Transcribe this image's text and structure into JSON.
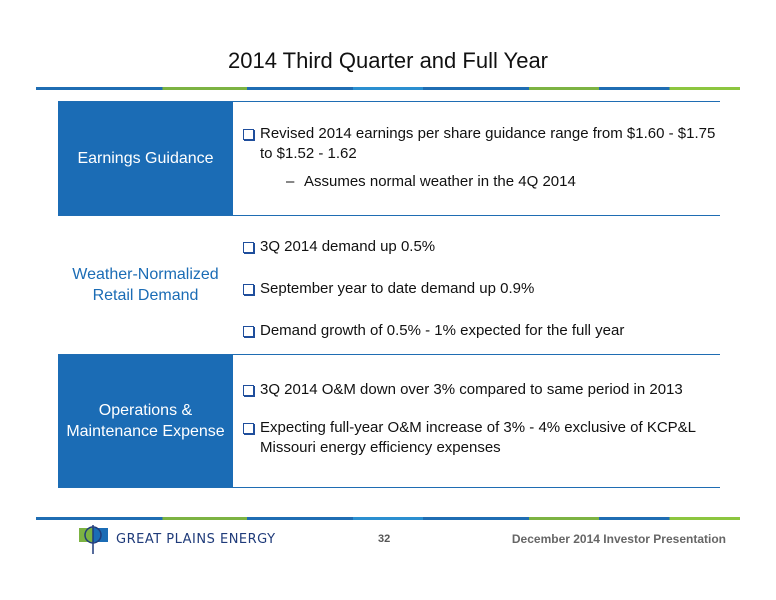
{
  "title": "2014 Third Quarter and Full Year",
  "rows": [
    {
      "label": "Earnings Guidance",
      "bullets": [
        "Revised 2014 earnings per share guidance range from $1.60 - $1.75 to $1.52 - 1.62"
      ],
      "sub": "Assumes normal weather in the 4Q 2014"
    },
    {
      "label": "Weather-Normalized Retail Demand",
      "bullets": [
        "3Q 2014 demand up 0.5%",
        "September year to date demand up 0.9%",
        "Demand growth of 0.5% - 1% expected for the full year"
      ]
    },
    {
      "label": "Operations & Maintenance Expense",
      "bullets": [
        "3Q 2014 O&M down over 3% compared to same period in 2013",
        "Expecting full-year O&M increase of 3% - 4% exclusive of KCP&L Missouri energy efficiency expenses"
      ]
    }
  ],
  "footer": {
    "logo_text": "GREAT PLAINS ENERGY",
    "page_number": "32",
    "presentation": "December 2014 Investor Presentation"
  },
  "colors": {
    "primary_blue": "#1b6cb5",
    "accent_green": "#7cb342"
  }
}
